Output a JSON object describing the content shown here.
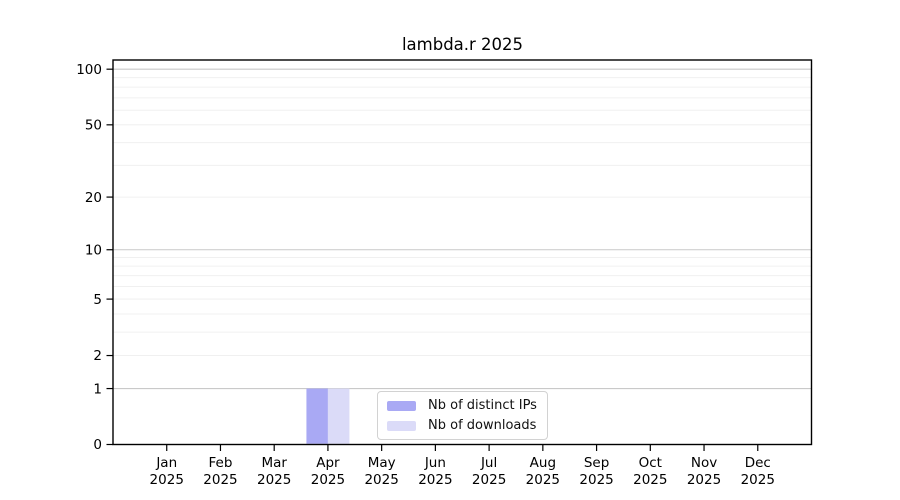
{
  "chart_data": {
    "type": "bar",
    "title": "lambda.r 2025",
    "categories": [
      "Jan",
      "Feb",
      "Mar",
      "Apr",
      "May",
      "Jun",
      "Jul",
      "Aug",
      "Sep",
      "Oct",
      "Nov",
      "Dec"
    ],
    "year": "2025",
    "series": [
      {
        "name": "Nb of distinct IPs",
        "color": "#a9a9f4",
        "values": [
          0,
          0,
          0,
          1,
          0,
          0,
          0,
          0,
          0,
          0,
          0,
          0
        ]
      },
      {
        "name": "Nb of downloads",
        "color": "#dbdbf8",
        "values": [
          0,
          0,
          0,
          1,
          0,
          0,
          0,
          0,
          0,
          0,
          0,
          0
        ]
      }
    ],
    "y_axis": {
      "scale": "log10(1+x)",
      "ticks": [
        0,
        1,
        2,
        5,
        10,
        20,
        50,
        100
      ],
      "top_value": 113
    },
    "grid": {
      "minor_values": [
        2,
        3,
        4,
        6,
        7,
        8,
        9,
        20,
        30,
        40,
        60,
        70,
        80,
        90
      ],
      "major_values": [
        1,
        5,
        10,
        50,
        100
      ],
      "minor_color": "#f0f0f0",
      "major_color": "#c9c9c9"
    },
    "legend": {
      "position": "bottom-center",
      "items": [
        "Nb of distinct IPs",
        "Nb of downloads"
      ]
    },
    "axis_color": "#000000",
    "background": "#ffffff"
  }
}
